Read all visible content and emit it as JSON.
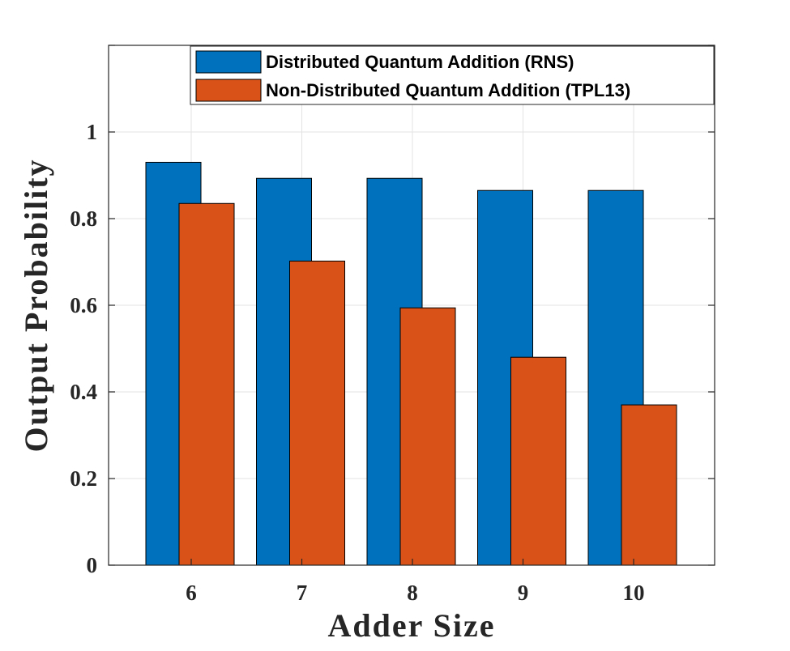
{
  "chart_data": {
    "type": "bar",
    "title": "",
    "xlabel": "Adder Size",
    "ylabel": "Output Probability",
    "categories": [
      "6",
      "7",
      "8",
      "9",
      "10"
    ],
    "series": [
      {
        "name": "Distributed Quantum Addition (RNS)",
        "color": "#0072BD",
        "values": [
          0.93,
          0.893,
          0.893,
          0.865,
          0.865
        ]
      },
      {
        "name": "Non-Distributed Quantum Addition (TPL13)",
        "color": "#D95319",
        "values": [
          0.835,
          0.702,
          0.594,
          0.48,
          0.37
        ]
      }
    ],
    "ylim": [
      0,
      1.2
    ],
    "yticks": [
      0,
      0.2,
      0.4,
      0.6,
      0.8,
      1
    ],
    "ytick_labels": [
      "0",
      "0.2",
      "0.4",
      "0.6",
      "0.8",
      "1"
    ],
    "grid": true,
    "legend_location": "top-right"
  }
}
